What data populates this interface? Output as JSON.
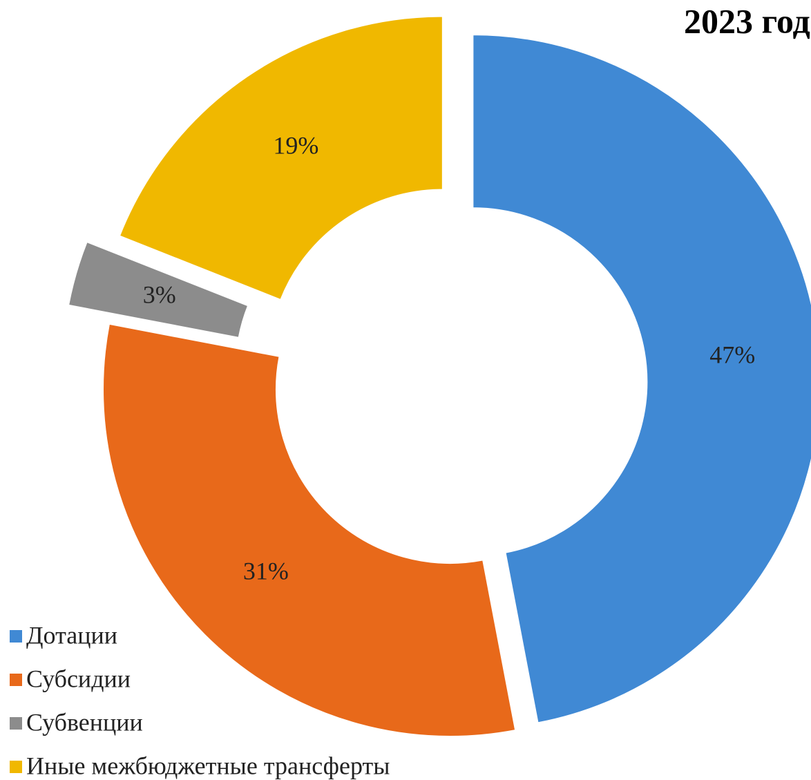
{
  "chart_data": {
    "type": "pie",
    "title": "2023 год",
    "donut": true,
    "legend": "bottom-left",
    "categories": [
      "Дотации",
      "Субсидии",
      "Субвенции",
      "Иные межбюджетные трансферты"
    ],
    "values": [
      47,
      31,
      3,
      19
    ],
    "value_labels": [
      "47%",
      "31%",
      "3%",
      "19%"
    ],
    "colors": [
      "#4089d4",
      "#e8691a",
      "#8c8c8c",
      "#f0b800"
    ]
  }
}
